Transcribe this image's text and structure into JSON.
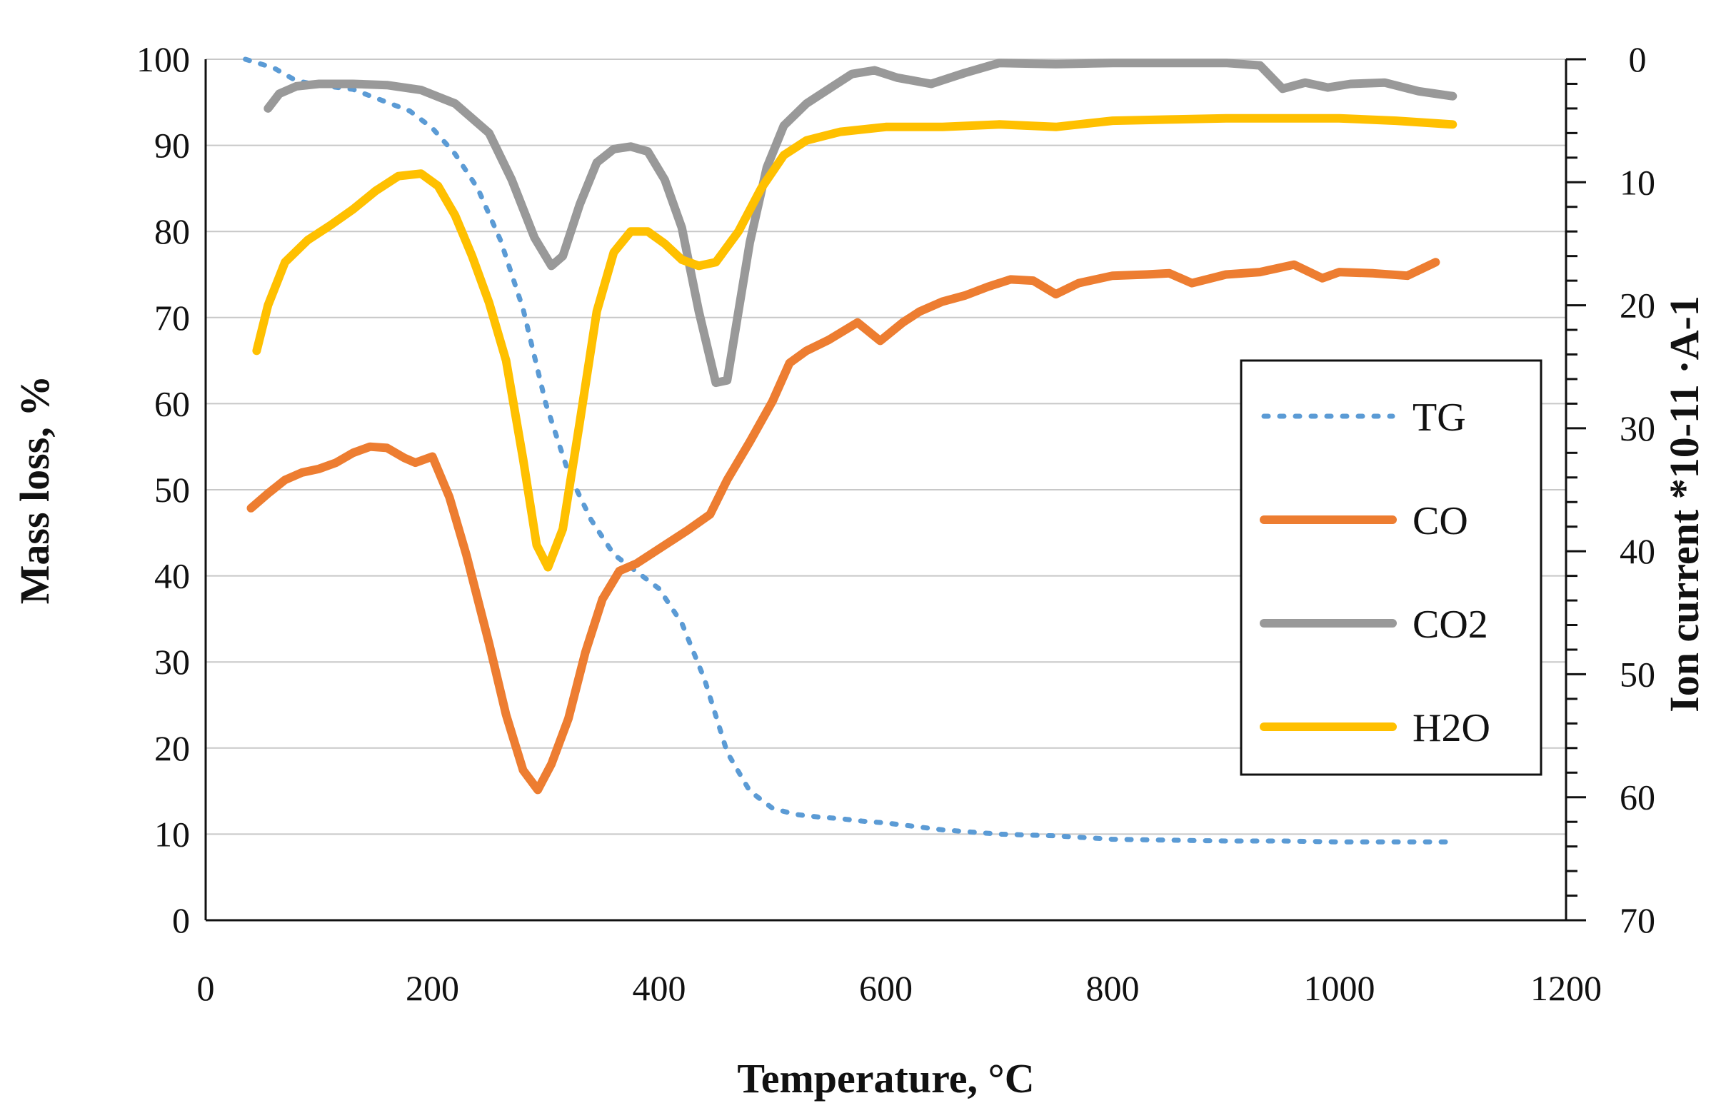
{
  "chart_data": {
    "type": "line",
    "title": "",
    "xlabel": "Temperature, °C",
    "ylabel": "Mass loss, %",
    "y2label": "Ion current *10-11 ·A-1",
    "xlim": [
      0,
      1200
    ],
    "ylim": [
      0,
      100
    ],
    "y2lim": [
      0,
      70
    ],
    "y2_inverted": true,
    "grid": true,
    "x_ticks": [
      "0",
      "200",
      "400",
      "600",
      "800",
      "1000",
      "1200"
    ],
    "y_ticks": [
      "0",
      "10",
      "20",
      "30",
      "40",
      "50",
      "60",
      "70",
      "80",
      "90",
      "100"
    ],
    "y2_ticks": [
      "0",
      "10",
      "20",
      "30",
      "40",
      "50",
      "60",
      "70"
    ],
    "legend_position": "right",
    "series": [
      {
        "name": "TG",
        "axis": "left",
        "color": "#5b9bd5",
        "style": "dotted",
        "x": [
          35,
          60,
          80,
          100,
          130,
          160,
          180,
          200,
          220,
          240,
          260,
          280,
          300,
          320,
          340,
          360,
          380,
          400,
          420,
          440,
          460,
          480,
          500,
          520,
          540,
          560,
          580,
          600,
          650,
          700,
          750,
          800,
          850,
          900,
          950,
          1000,
          1050,
          1100
        ],
        "y": [
          100,
          99,
          97.5,
          97,
          96.5,
          95,
          94,
          92,
          89,
          85,
          79,
          71,
          60,
          52,
          46.5,
          42.5,
          40.5,
          38.5,
          34.5,
          28,
          19.5,
          15,
          13,
          12.3,
          12,
          11.8,
          11.5,
          11.3,
          10.5,
          10,
          9.8,
          9.4,
          9.3,
          9.2,
          9.2,
          9.1,
          9.1,
          9.1
        ]
      },
      {
        "name": "CO",
        "axis": "right",
        "color": "#ed7d31",
        "style": "solid",
        "x": [
          40,
          55,
          70,
          85,
          100,
          115,
          130,
          145,
          160,
          175,
          185,
          200,
          215,
          230,
          250,
          265,
          280,
          293,
          305,
          320,
          335,
          350,
          365,
          380,
          395,
          410,
          425,
          445,
          460,
          480,
          500,
          515,
          530,
          550,
          575,
          595,
          615,
          630,
          650,
          670,
          690,
          710,
          730,
          750,
          770,
          800,
          830,
          850,
          870,
          900,
          930,
          960,
          985,
          1000,
          1030,
          1060,
          1085
        ],
        "y": [
          36.5,
          35.3,
          34.2,
          33.6,
          33.3,
          32.8,
          32,
          31.5,
          31.6,
          32.4,
          32.8,
          32.3,
          35.6,
          40.3,
          47.5,
          53.3,
          57.8,
          59.4,
          57.3,
          53.6,
          48.2,
          43.9,
          41.6,
          41,
          40.1,
          39.2,
          38.3,
          37,
          34.2,
          31.1,
          27.8,
          24.7,
          23.7,
          22.8,
          21.4,
          22.9,
          21.4,
          20.5,
          19.7,
          19.2,
          18.5,
          17.9,
          18,
          19.1,
          18.2,
          17.6,
          17.5,
          17.4,
          18.2,
          17.5,
          17.3,
          16.7,
          17.8,
          17.3,
          17.4,
          17.6,
          16.5
        ]
      },
      {
        "name": "CO2",
        "axis": "right",
        "color": "#999999",
        "style": "solid",
        "x": [
          55,
          65,
          80,
          100,
          130,
          160,
          190,
          220,
          250,
          270,
          290,
          305,
          315,
          330,
          345,
          360,
          375,
          390,
          405,
          420,
          435,
          450,
          460,
          470,
          480,
          495,
          510,
          530,
          550,
          570,
          590,
          610,
          640,
          670,
          700,
          750,
          800,
          850,
          900,
          930,
          950,
          970,
          990,
          1010,
          1040,
          1070,
          1100
        ],
        "y": [
          4,
          2.8,
          2.2,
          2,
          2,
          2.1,
          2.5,
          3.6,
          6,
          9.8,
          14.5,
          16.8,
          16,
          11.8,
          8.4,
          7.3,
          7.1,
          7.5,
          9.8,
          13.7,
          20.5,
          26.3,
          26.1,
          20.5,
          14.9,
          8.8,
          5.4,
          3.6,
          2.4,
          1.2,
          0.9,
          1.5,
          2,
          1.1,
          0.3,
          0.4,
          0.3,
          0.3,
          0.3,
          0.5,
          2.4,
          1.9,
          2.3,
          2,
          1.9,
          2.6,
          3
        ]
      },
      {
        "name": "H2O",
        "axis": "right",
        "color": "#ffc000",
        "style": "solid",
        "x": [
          45,
          55,
          70,
          90,
          110,
          130,
          150,
          170,
          190,
          205,
          220,
          235,
          250,
          265,
          280,
          292,
          302,
          315,
          330,
          345,
          360,
          375,
          390,
          405,
          420,
          435,
          450,
          470,
          490,
          510,
          530,
          560,
          600,
          650,
          700,
          750,
          800,
          850,
          900,
          950,
          1000,
          1050,
          1100
        ],
        "y": [
          23.7,
          20,
          16.5,
          14.7,
          13.5,
          12.2,
          10.7,
          9.5,
          9.3,
          10.3,
          12.7,
          16,
          19.8,
          24.5,
          32.5,
          39.5,
          41.3,
          38.2,
          29.5,
          20.5,
          15.7,
          14,
          14,
          15,
          16.3,
          16.8,
          16.5,
          14,
          10.5,
          7.8,
          6.6,
          5.9,
          5.5,
          5.5,
          5.3,
          5.5,
          5,
          4.9,
          4.8,
          4.8,
          4.8,
          5,
          5.3
        ]
      }
    ]
  }
}
